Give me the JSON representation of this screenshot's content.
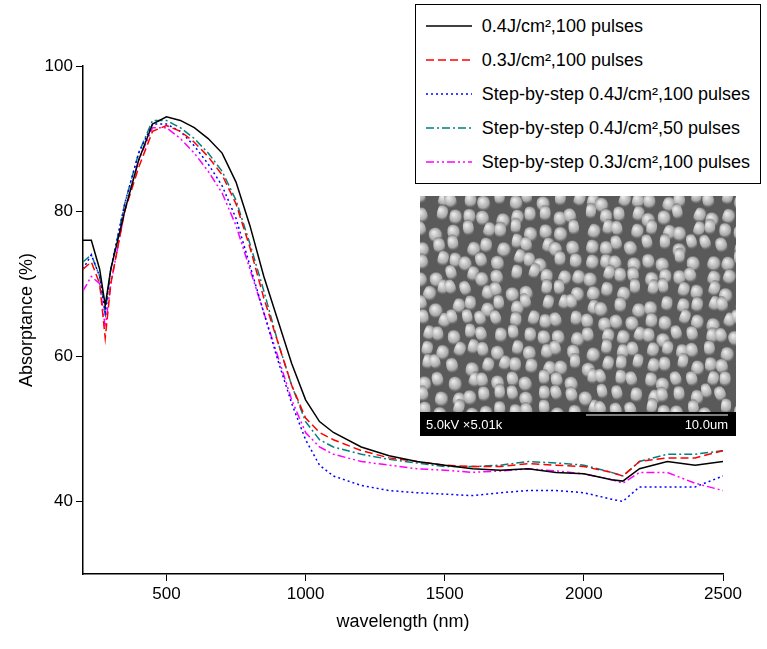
{
  "chart_data": {
    "type": "line",
    "x_label": "wavelength (nm)",
    "y_label": "Absorptance (%)",
    "x": [
      200,
      230,
      260,
      280,
      300,
      350,
      400,
      450,
      500,
      550,
      600,
      650,
      700,
      750,
      800,
      850,
      900,
      950,
      1000,
      1050,
      1100,
      1200,
      1300,
      1400,
      1500,
      1600,
      1700,
      1800,
      1900,
      2000,
      2100,
      2140,
      2200,
      2300,
      2400,
      2500
    ],
    "series": [
      {
        "name": "0.4J/cm²,100 pulses",
        "color": "#000000",
        "line_style": "solid",
        "values": [
          76,
          76,
          72,
          67,
          72,
          80,
          87,
          92,
          93,
          92.5,
          91.5,
          90,
          88,
          84,
          78,
          71,
          65,
          59,
          54,
          51,
          49.5,
          47.5,
          46.3,
          45.5,
          45,
          44.5,
          44.3,
          44.5,
          44,
          43.8,
          43,
          42.8,
          44.5,
          45.5,
          45,
          45.5
        ]
      },
      {
        "name": "0.3J/cm²,100 pulses",
        "color": "#ff0000",
        "line_style": "dashed",
        "values": [
          72,
          73,
          70,
          62.5,
          70,
          80,
          86,
          91,
          91.8,
          91,
          89.5,
          87.5,
          85,
          81,
          75,
          68,
          62,
          56,
          51.5,
          49.5,
          48.5,
          47,
          46,
          45.5,
          45,
          44.8,
          44.8,
          45.2,
          45,
          44.8,
          44,
          43.5,
          45.5,
          46,
          46,
          47
        ]
      },
      {
        "name": "Step-by-step 0.4J/cm²,100 pulses",
        "color": "#0000ff",
        "line_style": "dotted",
        "values": [
          72,
          74,
          71,
          66,
          72,
          81,
          88,
          92,
          92,
          91,
          89,
          86.5,
          83.5,
          79,
          72.5,
          66,
          59.5,
          53.5,
          48.5,
          45,
          43.5,
          42.2,
          41.5,
          41.2,
          41,
          40.8,
          41.2,
          41.5,
          41.5,
          41.2,
          40.3,
          40,
          42,
          42,
          42,
          43.5
        ]
      },
      {
        "name": "Step-by-step 0.4J/cm²,50 pulses",
        "color": "#008080",
        "line_style": "dash-dot",
        "values": [
          73,
          74,
          71,
          66,
          72,
          81,
          88,
          92.5,
          92.5,
          91.5,
          90,
          88,
          85.5,
          81.5,
          75.5,
          69,
          62,
          56,
          51,
          48.5,
          47.5,
          46.5,
          45.8,
          45.3,
          44.8,
          44.8,
          45,
          45.5,
          45.3,
          45,
          44,
          43.5,
          45.5,
          46.5,
          46.5,
          47
        ]
      },
      {
        "name": "Step-by-step 0.3J/cm²,100 pulses",
        "color": "#ff00ff",
        "line_style": "dash-dot-dot",
        "values": [
          69,
          71,
          70,
          64,
          70,
          80,
          87,
          91.5,
          91.5,
          90,
          88,
          85.5,
          82.5,
          78,
          72,
          66,
          60,
          54,
          49.5,
          47.5,
          46.5,
          45.5,
          45,
          44.5,
          44.3,
          44,
          44.2,
          44.5,
          44.2,
          43.8,
          43,
          42.5,
          44,
          44,
          42.5,
          41.5
        ]
      }
    ],
    "xlim": [
      200,
      2500
    ],
    "xticks": [
      500,
      1000,
      1500,
      2000,
      2500
    ],
    "ylim": [
      30,
      100
    ],
    "yticks": [
      40,
      60,
      80,
      100
    ],
    "grid": false,
    "legend": "upper right",
    "annotations": [
      "5.0kV ×5.01k",
      "10.0um"
    ]
  }
}
